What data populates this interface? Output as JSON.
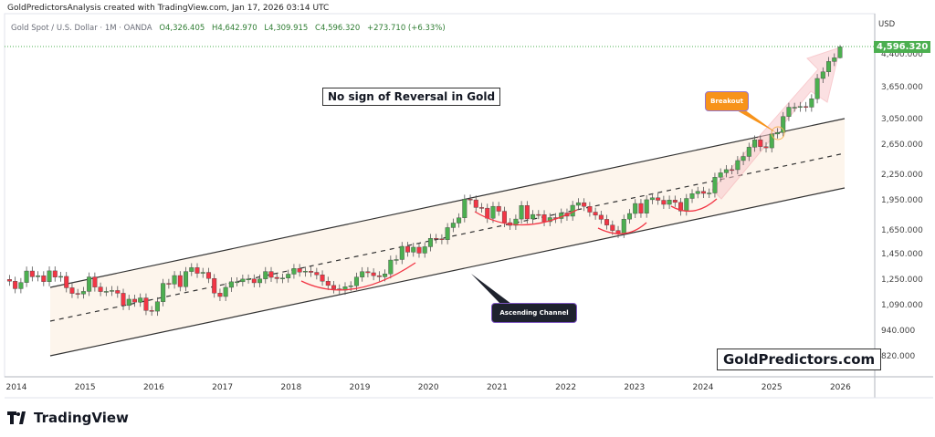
{
  "header": {
    "credit": "GoldPredictorsAnalysis created with TradingView.com, Jan 17, 2026 03:14 UTC",
    "symbol": "Gold Spot / U.S. Dollar · 1M · OANDA",
    "open": "O4,326.405",
    "high": "H4,642.970",
    "low": "L4,309.915",
    "close": "C4,596.320",
    "change": "+273.710 (+6.33%)"
  },
  "price_axis": {
    "currency": "USD",
    "last_price": "4,596.320",
    "ticks": [
      "4,400.000",
      "3,650.000",
      "3,050.000",
      "2,650.000",
      "2,250.000",
      "1,950.000",
      "1,650.000",
      "1,450.000",
      "1,250.000",
      "1,090.000",
      "940.000",
      "820.000"
    ]
  },
  "annotations": {
    "title": "No sign of Reversal in Gold",
    "breakout": "Breakout",
    "channel": "Ascending Channel",
    "brand": "GoldPredictors.com"
  },
  "footer": {
    "logo": "TradingView"
  },
  "colors": {
    "up": "#4caf50",
    "down": "#f23645",
    "channel_fill": "#fdf5ec",
    "arrow": "#f8c8cc",
    "breakout": "#f7931a"
  },
  "chart_data": {
    "type": "candlestick",
    "scale": "log",
    "title": "No sign of Reversal in Gold",
    "interval": "1M",
    "start": "2013-11",
    "x_ticks": [
      "2014",
      "2015",
      "2016",
      "2017",
      "2018",
      "2019",
      "2020",
      "2021",
      "2022",
      "2023",
      "2024",
      "2025",
      "2026"
    ],
    "ylim": [
      760,
      4900
    ],
    "closes": [
      1253,
      1202,
      1244,
      1326,
      1284,
      1292,
      1250,
      1327,
      1282,
      1287,
      1208,
      1171,
      1167,
      1184,
      1283,
      1213,
      1183,
      1184,
      1190,
      1172,
      1095,
      1134,
      1115,
      1142,
      1065,
      1061,
      1118,
      1238,
      1233,
      1293,
      1215,
      1322,
      1351,
      1309,
      1316,
      1272,
      1173,
      1151,
      1211,
      1249,
      1249,
      1268,
      1269,
      1242,
      1269,
      1322,
      1280,
      1271,
      1275,
      1303,
      1345,
      1318,
      1325,
      1316,
      1298,
      1253,
      1224,
      1201,
      1192,
      1215,
      1222,
      1282,
      1321,
      1313,
      1292,
      1284,
      1305,
      1409,
      1413,
      1520,
      1472,
      1513,
      1464,
      1517,
      1589,
      1585,
      1577,
      1687,
      1730,
      1781,
      1975,
      1967,
      1886,
      1879,
      1776,
      1898,
      1847,
      1734,
      1708,
      1769,
      1907,
      1770,
      1814,
      1813,
      1743,
      1783,
      1774,
      1829,
      1797,
      1909,
      1937,
      1897,
      1838,
      1807,
      1766,
      1711,
      1660,
      1633,
      1768,
      1824,
      1928,
      1827,
      1969,
      1990,
      1963,
      1919,
      1965,
      1940,
      1849,
      1983,
      2036,
      2063,
      2039,
      2044,
      2230,
      2286,
      2327,
      2326,
      2447,
      2503,
      2635,
      2744,
      2643,
      2625,
      2835,
      2858,
      3124,
      3289,
      3289,
      3303,
      3290,
      3448,
      3858,
      4002,
      4239,
      4326,
      4596.32
    ],
    "last_candle": {
      "open": 4326.405,
      "high": 4642.97,
      "low": 4309.915,
      "close": 4596.32
    }
  }
}
